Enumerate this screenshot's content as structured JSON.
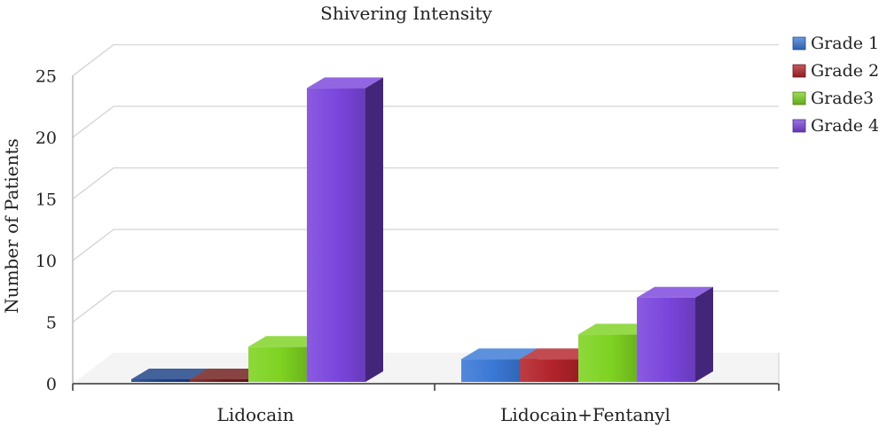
{
  "chart_data": {
    "type": "bar",
    "title": "Shivering Intensity",
    "xlabel": "",
    "ylabel": "Number of Patients",
    "categories": [
      "Lidocain",
      "Lidocain+Fentanyl"
    ],
    "series": [
      {
        "name": "Grade 1",
        "values": [
          0,
          2
        ],
        "color": "#3a78d6",
        "alt_colors": [
          "#1a3f86",
          null
        ]
      },
      {
        "name": "Grade 2",
        "values": [
          0,
          2
        ],
        "color": "#b3232a",
        "alt_colors": [
          "#6e1a1a",
          null
        ]
      },
      {
        "name": "Grade3",
        "values": [
          3,
          4
        ],
        "color": "#7ed321"
      },
      {
        "name": "Grade 4",
        "values": [
          24,
          7
        ],
        "color": "#7a45dc"
      }
    ],
    "ylim": [
      0,
      25
    ],
    "yticks": [
      0,
      5,
      10,
      15,
      20,
      25
    ],
    "grid": true,
    "legend_position": "right",
    "style": "3d-bars"
  }
}
